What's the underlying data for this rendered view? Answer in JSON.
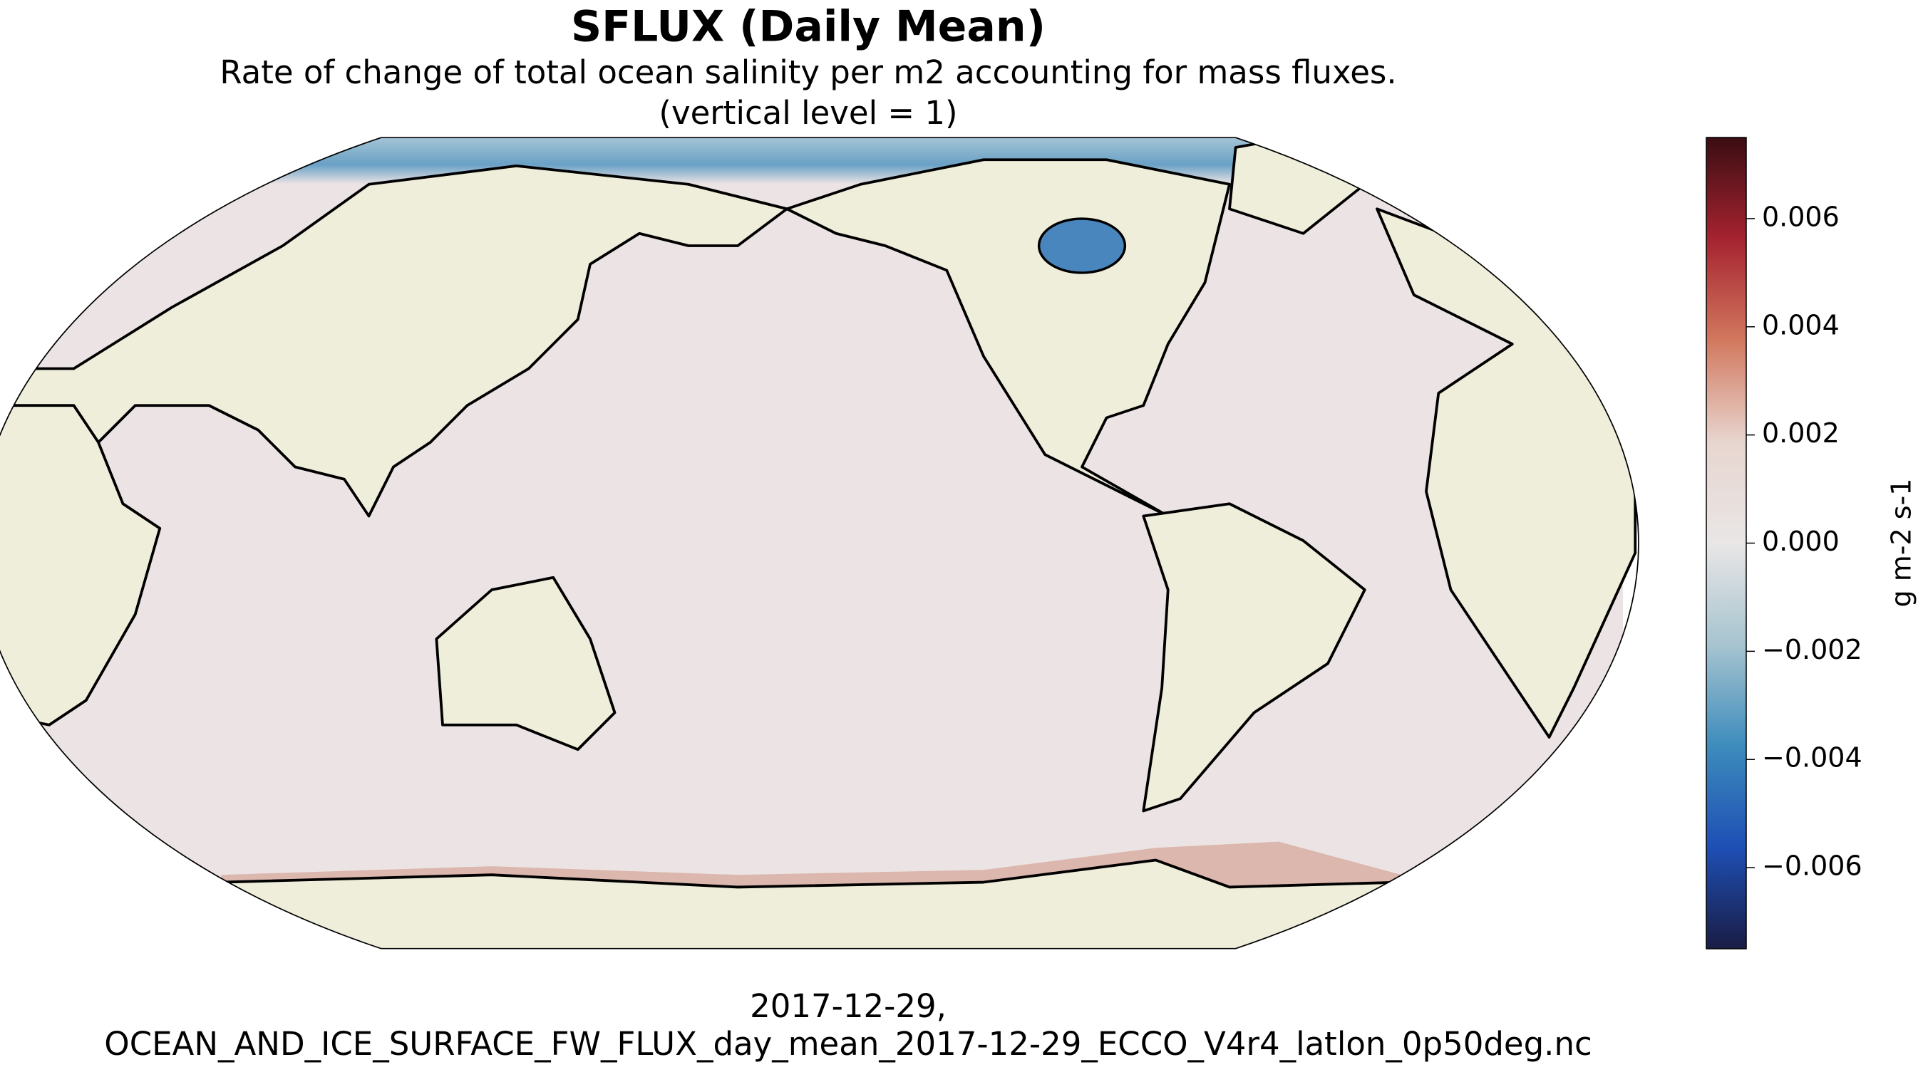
{
  "chart_data": {
    "type": "map",
    "title": "SFLUX (Daily Mean)",
    "subtitle": [
      "Rate of change of total ocean salinity per m2 accounting for mass fluxes.",
      "(vertical level = 1)"
    ],
    "footer": [
      "2017-12-29,",
      "OCEAN_AND_ICE_SURFACE_FW_FLUX_day_mean_2017-12-29_ECCO_V4r4_latlon_0p50deg.nc"
    ],
    "colorbar": {
      "label": "g m-2 s-1",
      "lim": [
        -0.0075,
        0.0075
      ],
      "ticks": [
        {
          "value": 0.006,
          "label": "0.006"
        },
        {
          "value": 0.004,
          "label": "0.004"
        },
        {
          "value": 0.002,
          "label": "0.002"
        },
        {
          "value": 0,
          "label": "0.000"
        },
        {
          "value": -0.002,
          "label": "−0.002"
        },
        {
          "value": -0.004,
          "label": "−0.004"
        },
        {
          "value": -0.006,
          "label": "−0.006"
        }
      ],
      "colors": [
        "#3b0d12",
        "#a52330",
        "#d2785e",
        "#e8d5cf",
        "#e9e6e6",
        "#a7c4d0",
        "#3d8cbc",
        "#1e4fb5",
        "#1a1c45"
      ]
    }
  }
}
